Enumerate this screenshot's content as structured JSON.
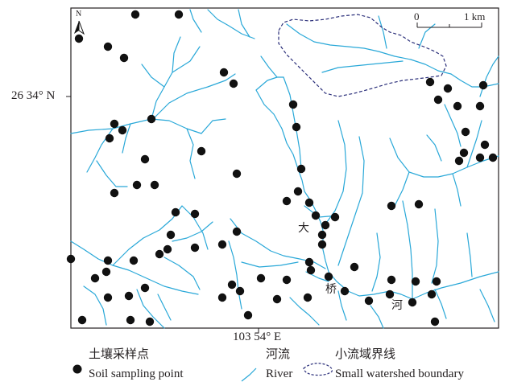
{
  "map": {
    "north_label": "N",
    "scale": {
      "start": "0",
      "end": "1 km"
    },
    "lat_label": "26 34° N",
    "lon_label": "103 54° E",
    "river_name_chars": [
      "大",
      "桥",
      "河"
    ]
  },
  "legend": {
    "soil_point": {
      "cn": "土壤采样点",
      "en": "Soil sampling point"
    },
    "river": {
      "cn": "河流",
      "en": "River"
    },
    "watershed": {
      "cn": "小流域界线",
      "en": "Small watershed boundary"
    }
  },
  "colors": {
    "river": "#29a8d8",
    "point": "#111111",
    "boundary": "#2b2f7a",
    "frame": "#231f20"
  },
  "icons": [
    "north-arrow-icon",
    "scale-bar-icon",
    "point-symbol-icon",
    "river-symbol-icon",
    "boundary-symbol-icon"
  ]
}
